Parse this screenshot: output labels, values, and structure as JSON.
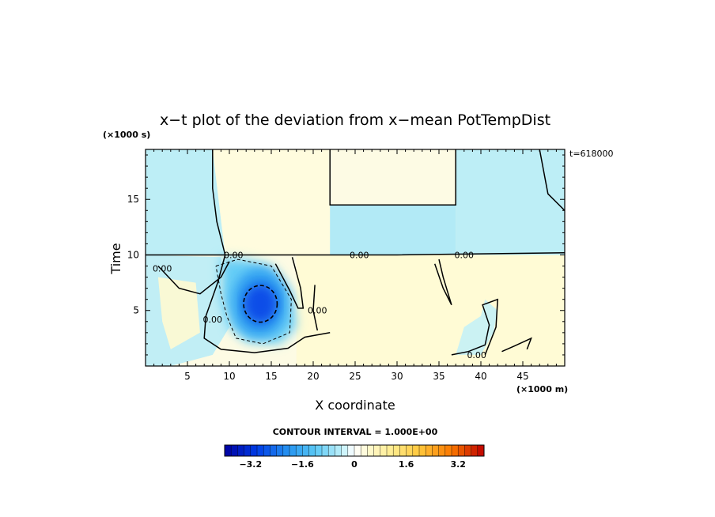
{
  "chart_data": {
    "type": "heatmap",
    "title": "x−t plot of the deviation from x−mean PotTempDist",
    "annotation": "t=618000",
    "xlabel": "X coordinate",
    "ylabel": "Time",
    "x_unit": "(×1000 m)",
    "y_unit": "(×1000 s)",
    "xlim": [
      0,
      50
    ],
    "ylim": [
      0,
      19.5
    ],
    "x_ticks": [
      5,
      10,
      15,
      20,
      25,
      30,
      35,
      40,
      45
    ],
    "y_ticks": [
      5,
      10,
      15
    ],
    "contour_labels": [
      {
        "text": "0.00",
        "x": 10.5,
        "y": 10.0
      },
      {
        "text": "0.00",
        "x": 2.0,
        "y": 8.8
      },
      {
        "text": "0.00",
        "x": 8.0,
        "y": 4.2
      },
      {
        "text": "0.00",
        "x": 20.5,
        "y": 5.0
      },
      {
        "text": "0.00",
        "x": 25.5,
        "y": 10.0
      },
      {
        "text": "0.00",
        "x": 38.0,
        "y": 10.0
      },
      {
        "text": "0.00",
        "x": 39.5,
        "y": 1.0
      }
    ],
    "contour_interval_text": "CONTOUR INTERVAL = 1.000E+00",
    "colorbar": {
      "range": [
        -4.0,
        4.0
      ],
      "step": 0.2,
      "tick_values": [
        -3.2,
        -1.6,
        0,
        1.6,
        3.2
      ],
      "tick_labels": [
        "−3.2",
        "−1.6",
        "0",
        "1.6",
        "3.2"
      ]
    },
    "field_regions": [
      {
        "region": "upper left band",
        "x": [
          0,
          8
        ],
        "y": [
          10,
          19.5
        ],
        "value": -0.5
      },
      {
        "region": "upper middle",
        "x": [
          8,
          22
        ],
        "y": [
          10,
          19.5
        ],
        "value": 0.3
      },
      {
        "region": "upper middle-right",
        "x": [
          22,
          37
        ],
        "y": [
          10,
          14
        ],
        "value": -0.6
      },
      {
        "region": "upper right",
        "x": [
          37,
          50
        ],
        "y": [
          10,
          19.5
        ],
        "value": -0.5
      },
      {
        "region": "cold core",
        "x": [
          8.5,
          18
        ],
        "y": [
          2,
          10
        ],
        "value": -2.3,
        "min": -2.8
      },
      {
        "region": "lower warm band",
        "x": [
          18,
          50
        ],
        "y": [
          0,
          10
        ],
        "value": 0.4
      }
    ]
  }
}
